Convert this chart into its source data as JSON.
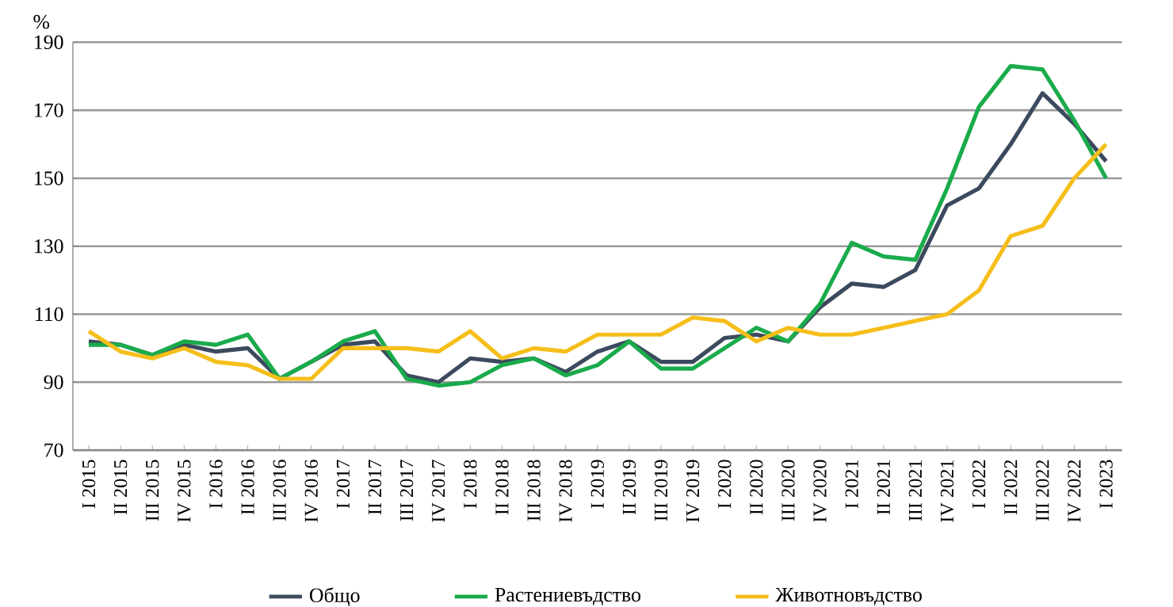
{
  "chart_data": {
    "type": "line",
    "ylabel": "%",
    "categories": [
      "I 2015",
      "II 2015",
      "III 2015",
      "IV 2015",
      "I 2016",
      "II 2016",
      "III 2016",
      "IV 2016",
      "I 2017",
      "II 2017",
      "III 2017",
      "IV 2017",
      "I 2018",
      "II 2018",
      "III 2018",
      "IV 2018",
      "I 2019",
      "II 2019",
      "III 2019",
      "IV 2019",
      "I 2020",
      "II 2020",
      "III 2020",
      "IV 2020",
      "I 2021",
      "II 2021",
      "III 2021",
      "IV 2021",
      "I 2022",
      "II 2022",
      "III 2022",
      "IV 2022",
      "I 2023"
    ],
    "series": [
      {
        "name": "Общо",
        "color": "#3c4a5e",
        "values": [
          102,
          101,
          98,
          101,
          99,
          100,
          91,
          96,
          101,
          102,
          92,
          90,
          97,
          96,
          97,
          93,
          99,
          102,
          96,
          96,
          103,
          104,
          102,
          112,
          119,
          118,
          123,
          142,
          147,
          160,
          175,
          166,
          155
        ]
      },
      {
        "name": "Растениевъдство",
        "color": "#1aab4b",
        "values": [
          101,
          101,
          98,
          102,
          101,
          104,
          91,
          96,
          102,
          105,
          91,
          89,
          90,
          95,
          97,
          92,
          95,
          102,
          94,
          94,
          100,
          106,
          102,
          113,
          131,
          127,
          126,
          147,
          171,
          183,
          182,
          167,
          150
        ]
      },
      {
        "name": "Животновъдство",
        "color": "#f5be1a",
        "values": [
          105,
          99,
          97,
          100,
          96,
          95,
          91,
          91,
          100,
          100,
          100,
          99,
          105,
          97,
          100,
          99,
          104,
          104,
          104,
          109,
          108,
          102,
          106,
          104,
          104,
          106,
          108,
          110,
          117,
          133,
          136,
          150,
          160
        ]
      }
    ],
    "ylim": [
      70,
      190
    ],
    "yticks": [
      70,
      90,
      110,
      130,
      150,
      170,
      190
    ],
    "grid": "y",
    "legend": "bottom"
  }
}
